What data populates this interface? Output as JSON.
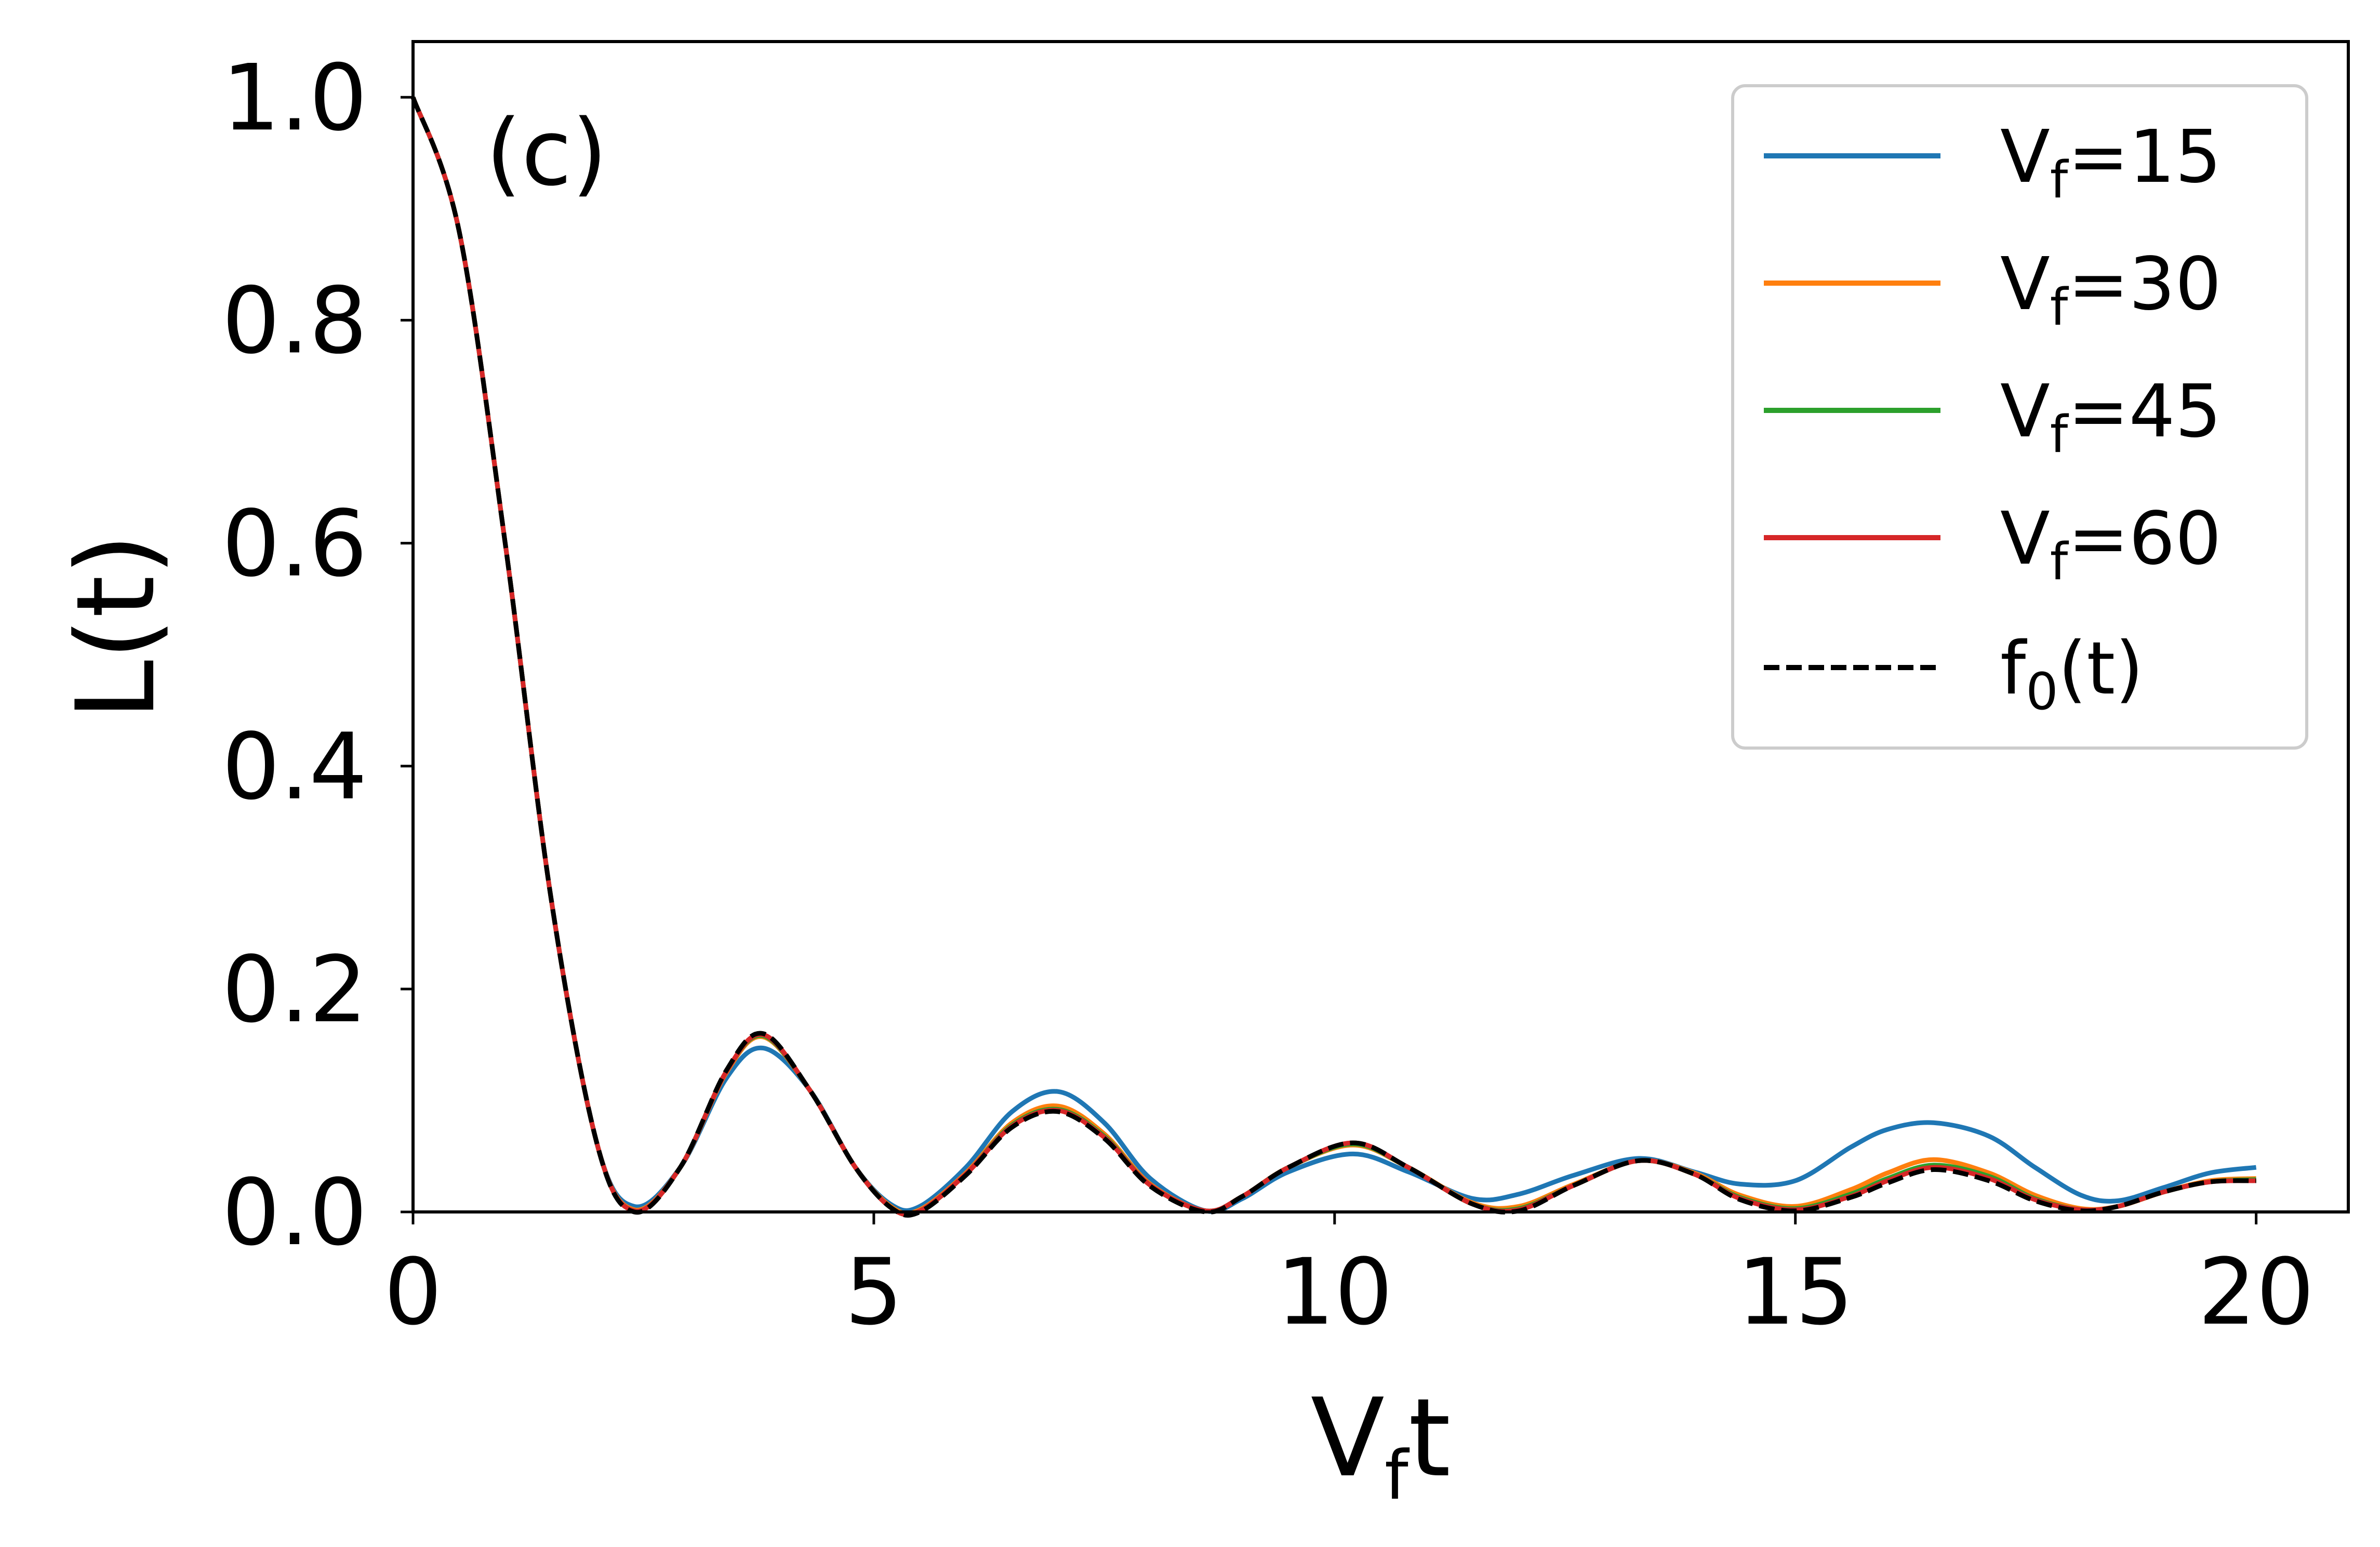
{
  "chart_data": {
    "type": "line",
    "panel_label": "(c)",
    "xlabel": {
      "main": "V",
      "sub": "f",
      "tail": "t"
    },
    "ylabel": "L(t)",
    "xlim": [
      0,
      21
    ],
    "ylim": [
      0,
      1.05
    ],
    "xticks": [
      0,
      5,
      10,
      15,
      20
    ],
    "xtick_labels": [
      "0",
      "5",
      "10",
      "15",
      "20"
    ],
    "yticks": [
      0.0,
      0.2,
      0.4,
      0.6,
      0.8,
      1.0
    ],
    "ytick_labels": [
      "0.0",
      "0.2",
      "0.4",
      "0.6",
      "0.8",
      "1.0"
    ],
    "grid": false,
    "legend_position": "top-right",
    "x": [
      0,
      0.5,
      1.0,
      1.5,
      2.0,
      2.4,
      2.9,
      3.4,
      3.8,
      4.3,
      4.8,
      5.2,
      5.5,
      6.0,
      6.5,
      7.0,
      7.5,
      8.0,
      8.6,
      9.0,
      9.5,
      10.2,
      10.8,
      11.5,
      12.0,
      12.6,
      13.3,
      13.9,
      14.4,
      15.0,
      15.6,
      16.0,
      16.5,
      17.1,
      17.6,
      18.1,
      18.5,
      19.0,
      19.5,
      20.0
    ],
    "series": [
      {
        "name_main": "V",
        "name_sub": "f",
        "name_tail": "=15",
        "color": "#1f77b4",
        "style": "solid",
        "values": [
          1.0,
          0.88,
          0.6,
          0.28,
          0.06,
          0.005,
          0.04,
          0.12,
          0.147,
          0.11,
          0.04,
          0.006,
          0.005,
          0.04,
          0.09,
          0.108,
          0.08,
          0.03,
          0.001,
          0.012,
          0.036,
          0.052,
          0.036,
          0.012,
          0.016,
          0.033,
          0.048,
          0.036,
          0.025,
          0.028,
          0.058,
          0.074,
          0.08,
          0.068,
          0.04,
          0.015,
          0.01,
          0.022,
          0.035,
          0.04
        ]
      },
      {
        "name_main": "V",
        "name_sub": "f",
        "name_tail": "=30",
        "color": "#ff7f0e",
        "style": "solid",
        "values": [
          1.0,
          0.88,
          0.6,
          0.28,
          0.06,
          0.002,
          0.04,
          0.125,
          0.157,
          0.11,
          0.04,
          0.004,
          0.002,
          0.035,
          0.08,
          0.095,
          0.07,
          0.025,
          0.001,
          0.014,
          0.04,
          0.06,
          0.04,
          0.008,
          0.005,
          0.025,
          0.046,
          0.035,
          0.015,
          0.005,
          0.02,
          0.035,
          0.047,
          0.035,
          0.015,
          0.003,
          0.005,
          0.018,
          0.028,
          0.03
        ]
      },
      {
        "name_main": "V",
        "name_sub": "f",
        "name_tail": "=45",
        "color": "#2ca02c",
        "style": "solid",
        "values": [
          1.0,
          0.88,
          0.6,
          0.28,
          0.06,
          0.001,
          0.04,
          0.126,
          0.158,
          0.11,
          0.04,
          0.003,
          0.001,
          0.034,
          0.078,
          0.092,
          0.068,
          0.024,
          0.001,
          0.014,
          0.04,
          0.061,
          0.04,
          0.007,
          0.003,
          0.024,
          0.046,
          0.034,
          0.013,
          0.003,
          0.016,
          0.03,
          0.042,
          0.032,
          0.012,
          0.002,
          0.005,
          0.018,
          0.027,
          0.029
        ]
      },
      {
        "name_main": "V",
        "name_sub": "f",
        "name_tail": "=60",
        "color": "#d62728",
        "style": "solid",
        "values": [
          1.0,
          0.88,
          0.6,
          0.28,
          0.06,
          0.001,
          0.04,
          0.126,
          0.159,
          0.11,
          0.04,
          0.003,
          0.001,
          0.034,
          0.077,
          0.091,
          0.067,
          0.024,
          0.001,
          0.014,
          0.04,
          0.062,
          0.04,
          0.007,
          0.002,
          0.024,
          0.046,
          0.034,
          0.012,
          0.002,
          0.014,
          0.028,
          0.04,
          0.03,
          0.011,
          0.002,
          0.005,
          0.018,
          0.027,
          0.028
        ]
      },
      {
        "name_main": "f",
        "name_sub": "0",
        "name_tail": "(t)",
        "color": "#000000",
        "style": "dashed",
        "values": [
          1.0,
          0.88,
          0.6,
          0.28,
          0.06,
          0.0,
          0.04,
          0.127,
          0.16,
          0.11,
          0.04,
          0.003,
          0.0,
          0.033,
          0.076,
          0.09,
          0.066,
          0.023,
          0.0,
          0.014,
          0.04,
          0.062,
          0.04,
          0.007,
          0.001,
          0.024,
          0.046,
          0.034,
          0.011,
          0.001,
          0.013,
          0.026,
          0.038,
          0.028,
          0.01,
          0.001,
          0.005,
          0.018,
          0.027,
          0.028
        ]
      }
    ]
  }
}
